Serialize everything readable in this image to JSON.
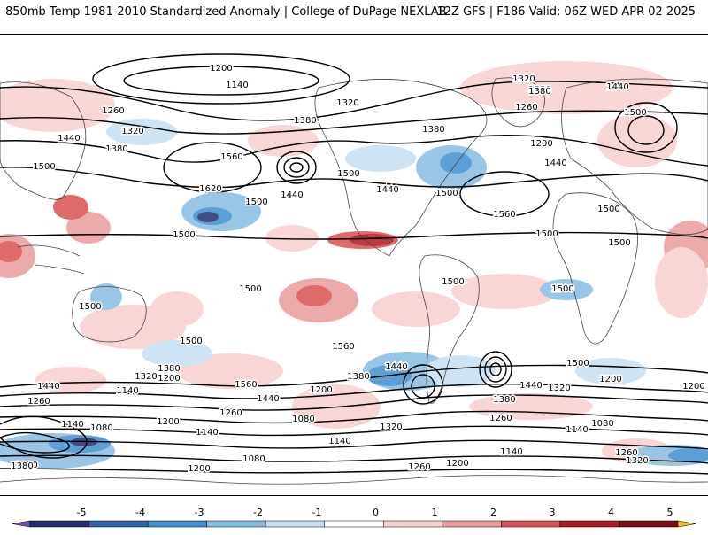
{
  "header": {
    "left_title": "850mb Temp 1981-2010 Standardized Anomaly | College of DuPage NEXLAB",
    "right_title": "12Z GFS | F186 Valid: 06Z WED APR 02 2025"
  },
  "colorbar": {
    "ticks": [
      "-5",
      "-4",
      "-3",
      "-2",
      "-1",
      "0",
      "1",
      "2",
      "3",
      "4",
      "5"
    ],
    "colors": [
      "#7a45b5",
      "#22306e",
      "#2e62a8",
      "#3f8fcf",
      "#88bde2",
      "#c6dff2",
      "#ffffff",
      "#f8d0d0",
      "#eb9c9c",
      "#d95151",
      "#b01a22",
      "#7a0c12",
      "#f0c020"
    ]
  },
  "contour_labels": [
    "1200",
    "1140",
    "1260",
    "1320",
    "1380",
    "1440",
    "1500",
    "1560",
    "1620",
    "1080",
    "1260",
    "1320",
    "1380",
    "1440",
    "1500",
    "1560",
    "1200",
    "1140"
  ],
  "map_labels": {
    "north_pacific": [
      "1200",
      "1140",
      "1260",
      "1320",
      "1440",
      "1380",
      "1500",
      "1560",
      "1620",
      "1500",
      "1440",
      "1380"
    ],
    "north_america": [
      "1320",
      "1380",
      "1380",
      "1500",
      "1440",
      "1500",
      "1560"
    ],
    "europe_asia": [
      "1320",
      "1380",
      "1260",
      "1200",
      "1440",
      "1500",
      "1440",
      "1500",
      "1500",
      "1500"
    ],
    "tropics": [
      "1500",
      "1500",
      "1500",
      "1500",
      "1500",
      "1560",
      "1500"
    ],
    "southern": [
      "1440",
      "1380",
      "1320",
      "1200",
      "1140",
      "1260",
      "1380",
      "1140",
      "1080",
      "1200",
      "1560",
      "1440",
      "1260",
      "1200",
      "1080",
      "1140",
      "1320",
      "1260",
      "1080",
      "1140",
      "1200",
      "1260",
      "1320",
      "1200",
      "1380",
      "1500",
      "1440",
      "1320",
      "1200",
      "1140",
      "1080",
      "1140",
      "1260",
      "1200",
      "1320",
      "1380",
      "1440",
      "1500"
    ]
  }
}
